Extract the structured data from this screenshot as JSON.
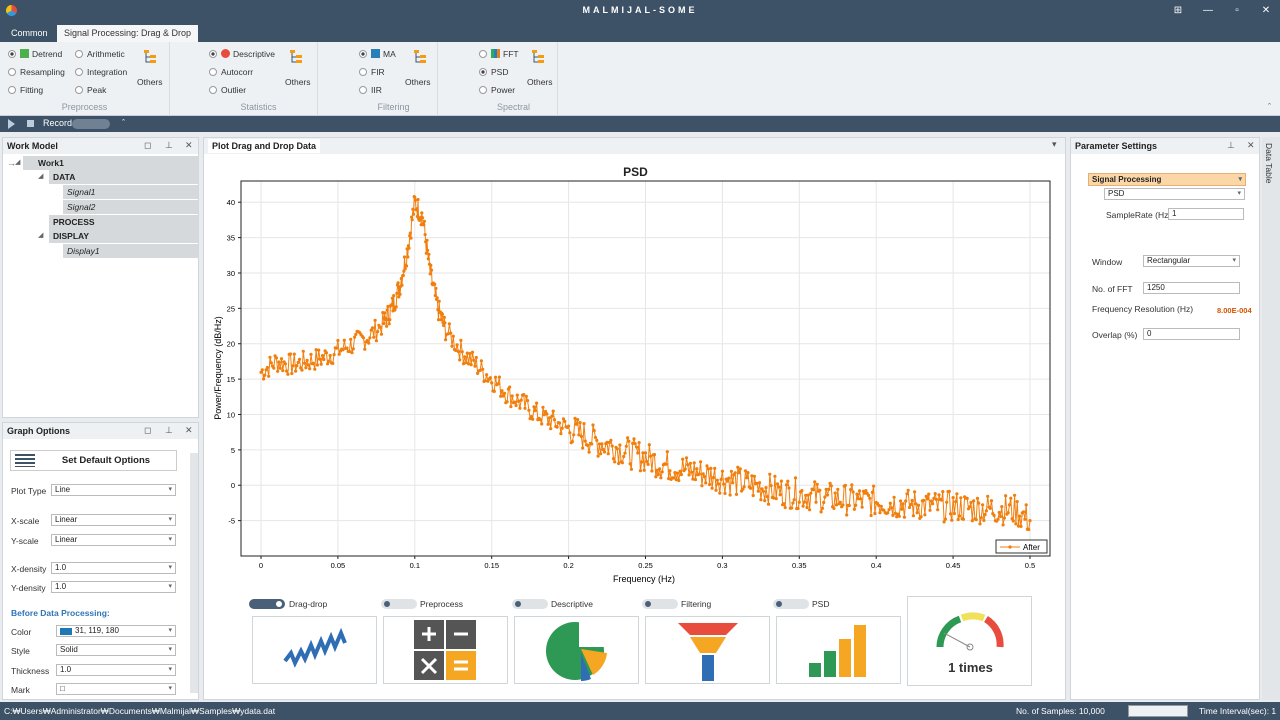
{
  "app": {
    "title": "MALMIJAL-SOME"
  },
  "window_controls": {
    "restore": "⊞",
    "minimize": "—",
    "maximize": "▫",
    "close": "✕"
  },
  "tabs": [
    "Common",
    "Signal Processing: Drag & Drop"
  ],
  "ribbon": {
    "preprocess": {
      "label": "Preprocess",
      "items": [
        "Detrend",
        "Arithmetic",
        "Resampling",
        "Integration",
        "Fitting",
        "Peak"
      ],
      "others": "Others"
    },
    "statistics": {
      "label": "Statistics",
      "items": [
        "Descriptive",
        "Autocorr",
        "Outlier"
      ],
      "others": "Others"
    },
    "filtering": {
      "label": "Filtering",
      "items": [
        "MA",
        "FIR",
        "IIR"
      ],
      "others": "Others"
    },
    "spectral": {
      "label": "Spectral",
      "items": [
        "FFT",
        "PSD",
        "Power"
      ],
      "others": "Others"
    }
  },
  "toolbar": {
    "record": "Record",
    "collapse": "ˆ"
  },
  "work_model": {
    "title": "Work Model",
    "work": "Work1",
    "data": "DATA",
    "signals": [
      "Signal1",
      "Signal2"
    ],
    "process": "PROCESS",
    "display": "DISPLAY",
    "displays": [
      "Display1"
    ]
  },
  "graph_options": {
    "title": "Graph Options",
    "default_btn": "Set Default Options",
    "plot_type_label": "Plot Type",
    "plot_type": "Line",
    "xscale_label": "X-scale",
    "xscale": "Linear",
    "yscale_label": "Y-scale",
    "yscale": "Linear",
    "xdensity_label": "X-density",
    "xdensity": "1.0",
    "ydensity_label": "Y-density",
    "ydensity": "1.0",
    "section": "Before Data Processing:",
    "color_label": "Color",
    "color": "31, 119, 180",
    "color_hex": "#1f77b4",
    "style_label": "Style",
    "style": "Solid",
    "thickness_label": "Thickness",
    "thickness": "1.0",
    "mark_label": "Mark",
    "mark": "□"
  },
  "plot_panel": {
    "title": "Plot Drag and Drop Data"
  },
  "chart_data": {
    "type": "line",
    "title": "PSD",
    "xlabel": "Frequency (Hz)",
    "ylabel": "Power/Frequency (dB/Hz)",
    "xlim": [
      0,
      0.5
    ],
    "ylim": [
      -10,
      43
    ],
    "xticks": [
      "0",
      "0.05",
      "0.1",
      "0.15",
      "0.2",
      "0.25",
      "0.3",
      "0.35",
      "0.4",
      "0.45",
      "0.5"
    ],
    "yticks": [
      "-5",
      "0",
      "5",
      "10",
      "15",
      "20",
      "25",
      "30",
      "35",
      "40"
    ],
    "grid": true,
    "legend": "bottom-right",
    "series": [
      {
        "name": "After",
        "color": "#f07f0e",
        "x": [
          0,
          0.01,
          0.02,
          0.03,
          0.04,
          0.05,
          0.06,
          0.07,
          0.08,
          0.085,
          0.09,
          0.095,
          0.1,
          0.105,
          0.11,
          0.115,
          0.12,
          0.13,
          0.14,
          0.15,
          0.16,
          0.17,
          0.18,
          0.19,
          0.2,
          0.21,
          0.22,
          0.23,
          0.24,
          0.25,
          0.26,
          0.27,
          0.28,
          0.29,
          0.3,
          0.31,
          0.32,
          0.33,
          0.34,
          0.35,
          0.36,
          0.37,
          0.38,
          0.39,
          0.4,
          0.41,
          0.42,
          0.43,
          0.44,
          0.45,
          0.46,
          0.47,
          0.48,
          0.49,
          0.5
        ],
        "y": [
          16,
          17.5,
          17,
          17.5,
          18,
          19,
          20,
          21,
          23,
          25,
          28,
          33,
          40,
          38,
          30,
          25,
          22,
          19,
          17,
          15,
          13,
          11.5,
          10,
          9,
          8,
          7,
          6,
          5.5,
          4.5,
          4,
          3,
          2.5,
          2,
          1.5,
          1,
          0.5,
          0,
          -0.5,
          -1,
          -1.2,
          -1.5,
          -1.8,
          -2,
          -2.2,
          -2.3,
          -2.5,
          -2.7,
          -2.8,
          -3,
          -3,
          -3.2,
          -3.3,
          -3.4,
          -3.5,
          -5
        ]
      }
    ]
  },
  "process_bar": [
    {
      "label": "Drag-drop",
      "on": true,
      "icon": "line-chart-icon"
    },
    {
      "label": "Preprocess",
      "on": false,
      "icon": "calculator-icon"
    },
    {
      "label": "Descriptive",
      "on": false,
      "icon": "pie-chart-icon"
    },
    {
      "label": "Filtering",
      "on": false,
      "icon": "funnel-icon"
    },
    {
      "label": "PSD",
      "on": false,
      "icon": "bar-chart-icon"
    }
  ],
  "gauge": {
    "label": "1 times"
  },
  "params": {
    "title": "Parameter Settings",
    "side_tab": "Data Table",
    "section": "Signal Processing",
    "method": "PSD",
    "samplerate_label": "SampleRate (Hz)",
    "samplerate": "1",
    "window_label": "Window",
    "window": "Rectangular",
    "nfft_label": "No. of FFT",
    "nfft": "1250",
    "freqres_label": "Frequency Resolution (Hz)",
    "freqres": "8.00E-004",
    "overlap_label": "Overlap (%)",
    "overlap": "0"
  },
  "status": {
    "path": "C:₩Users₩Administrator₩Documents₩Malmijal₩Samples₩ydata.dat",
    "samples": "No. of Samples: 10,000",
    "interval": "Time Interval(sec): 1"
  }
}
